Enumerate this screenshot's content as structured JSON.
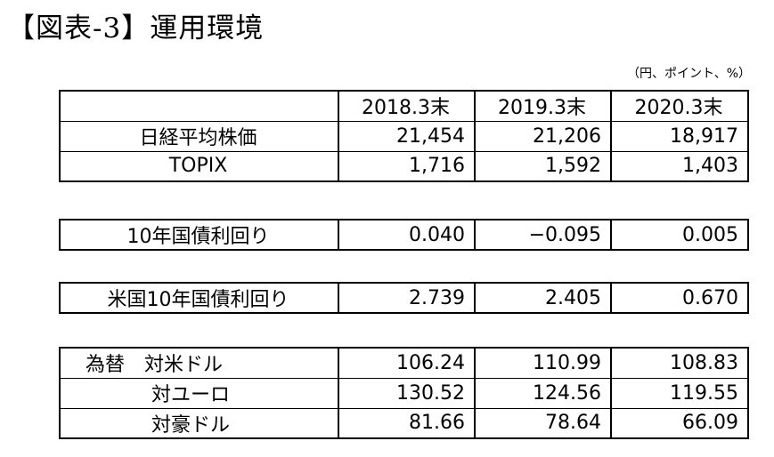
{
  "title": "【図表-3】運用環境",
  "unit_note": "（円、ポイント、%）",
  "header": {
    "blank": "",
    "cols": [
      "2018.3末",
      "2019.3末",
      "2020.3末"
    ]
  },
  "block_index": {
    "rows": [
      {
        "label": "日経平均株価",
        "values": [
          "21,454",
          "21,206",
          "18,917"
        ]
      },
      {
        "label": "TOPIX",
        "values": [
          "1,716",
          "1,592",
          "1,403"
        ]
      }
    ]
  },
  "block_jgb": {
    "label": "10年国債利回り",
    "values": [
      "0.040",
      "−0.095",
      "0.005"
    ]
  },
  "block_ust": {
    "label": "米国10年国債利回り",
    "values": [
      "2.739",
      "2.405",
      "0.670"
    ]
  },
  "block_fx": {
    "rows": [
      {
        "label": "為替　対米ドル",
        "values": [
          "106.24",
          "110.99",
          "108.83"
        ]
      },
      {
        "label": "対ユーロ",
        "values": [
          "130.52",
          "124.56",
          "119.55"
        ]
      },
      {
        "label": "対豪ドル",
        "values": [
          "81.66",
          "78.64",
          "66.09"
        ]
      }
    ]
  }
}
